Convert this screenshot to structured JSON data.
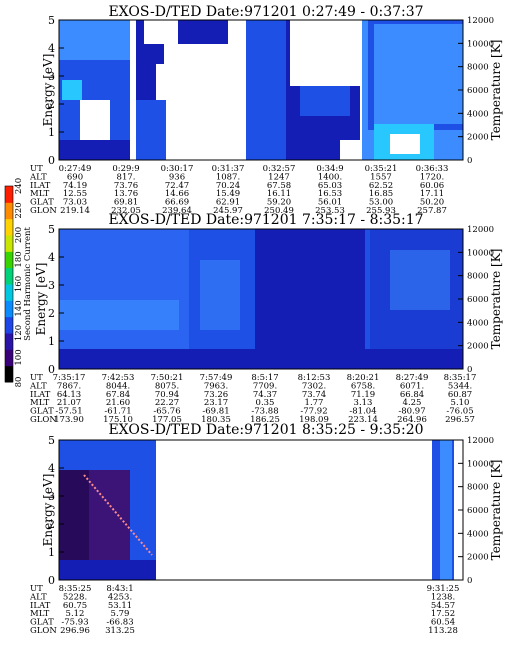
{
  "chart_data": [
    {
      "type": "heatmap",
      "title": "EXOS-D/TED   Date:971201  0:27:49 - 0:37:37",
      "ylabel": "Energy [eV]",
      "y2label": "Temperature [K]",
      "ylim": [
        0,
        5
      ],
      "y2lim": [
        0,
        12000
      ],
      "yticks": [
        "0",
        "1",
        "2",
        "3",
        "4",
        "5"
      ],
      "y2ticks": [
        "0",
        "2000",
        "4000",
        "6000",
        "8000",
        "10000",
        "12000"
      ],
      "table": {
        "rows": [
          "UT",
          "ALT",
          "ILAT",
          "MLT",
          "GLAT",
          "GLON"
        ],
        "columns": [
          [
            "0:27:49",
            "690",
            "74.19",
            "12.55",
            "73.03",
            "219.14"
          ],
          [
            "0:29:9",
            "817.",
            "73.76",
            "13.76",
            "69.81",
            "232.05"
          ],
          [
            "0:30:17",
            "936",
            "72.47",
            "14.66",
            "66.69",
            "239.64"
          ],
          [
            "0:31:37",
            "1087.",
            "70.24",
            "15.49",
            "62.91",
            "245.97"
          ],
          [
            "0:32:57",
            "1247",
            "67.58",
            "16.11",
            "59.20",
            "250.49"
          ],
          [
            "0:34:9",
            "1400.",
            "65.03",
            "16.53",
            "56.01",
            "253.53"
          ],
          [
            "0:35:21",
            "1557",
            "62.52",
            "16.85",
            "53.00",
            "255.93"
          ],
          [
            "0:36:33",
            "1720.",
            "60.06",
            "17.11",
            "50.20",
            "257.87"
          ]
        ]
      }
    },
    {
      "type": "heatmap",
      "title": "EXOS-D/TED   Date:971201  7:35:17 - 8:35:17",
      "ylabel": "Energy [eV]",
      "y2label": "Temperature [K]",
      "ylim": [
        0,
        5
      ],
      "y2lim": [
        0,
        12000
      ],
      "yticks": [
        "0",
        "1",
        "2",
        "3",
        "4",
        "5"
      ],
      "y2ticks": [
        "0",
        "2000",
        "4000",
        "6000",
        "8000",
        "10000",
        "12000"
      ],
      "table": {
        "rows": [
          "UT",
          "ALT",
          "ILAT",
          "MLT",
          "GLAT",
          "GLON"
        ],
        "columns": [
          [
            "7:35:17",
            "7867.",
            "64.13",
            "21.07",
            "-57.51",
            "173.90"
          ],
          [
            "7:42:53",
            "8044.",
            "67.84",
            "21.60",
            "-61.71",
            "175.10"
          ],
          [
            "7:50:21",
            "8075.",
            "70.94",
            "22.27",
            "-65.76",
            "177.05"
          ],
          [
            "7:57:49",
            "7963.",
            "73.26",
            "23.17",
            "-69.81",
            "180.35"
          ],
          [
            "8:5:17",
            "7709.",
            "74.37",
            "0.35",
            "-73.88",
            "186.25"
          ],
          [
            "8:12:53",
            "7302.",
            "73.74",
            "1.77",
            "-77.92",
            "198.09"
          ],
          [
            "8:20:21",
            "6758.",
            "71.19",
            "3.13",
            "-81.04",
            "223.14"
          ],
          [
            "8:27:49",
            "6071.",
            "66.84",
            "4.25",
            "-80.97",
            "264.96"
          ],
          [
            "8:35:17",
            "5344.",
            "60.87",
            "5.10",
            "-76.05",
            "296.57"
          ]
        ]
      }
    },
    {
      "type": "heatmap",
      "title": "EXOS-D/TED   Date:971201  8:35:25 - 9:35:20",
      "ylabel": "Energy [eV]",
      "y2label": "Temperature [K]",
      "ylim": [
        0,
        5
      ],
      "y2lim": [
        0,
        12000
      ],
      "yticks": [
        "0",
        "1",
        "2",
        "3",
        "4",
        "5"
      ],
      "y2ticks": [
        "0",
        "2000",
        "4000",
        "6000",
        "8000",
        "10000",
        "12000"
      ],
      "table": {
        "rows": [
          "UT",
          "ALT",
          "ILAT",
          "MLT",
          "GLAT",
          "GLON"
        ],
        "columns": [
          [
            "8:35:25",
            "5228.",
            "60.75",
            "5.12",
            "-75.93",
            "296.96"
          ],
          [
            "8:43:1",
            "4253.",
            "53.11",
            "5.79",
            "-66.83",
            "313.25"
          ],
          [
            "9:31:25",
            "1238.",
            "54.57",
            "17.52",
            "60.54",
            "113.28"
          ]
        ]
      }
    }
  ],
  "colorbar": {
    "label": "Second Harmonic Current",
    "ticks": [
      "80",
      "100",
      "120",
      "140",
      "160",
      "180",
      "200",
      "220",
      "240"
    ],
    "colors": [
      "#000000",
      "#3a007a",
      "#2a14a8",
      "#1e46e6",
      "#0a8cff",
      "#00c8e0",
      "#00d27a",
      "#38d400",
      "#c8e600",
      "#ffd200",
      "#ff8c00",
      "#ff1e00"
    ]
  },
  "colors": {
    "dark_blue": "#141eb4",
    "mid_blue": "#1e50e6",
    "light_blue": "#3c8cff",
    "cyan": "#28c8ff",
    "purple": "#3c1478",
    "dark_purple": "#280a5a"
  }
}
